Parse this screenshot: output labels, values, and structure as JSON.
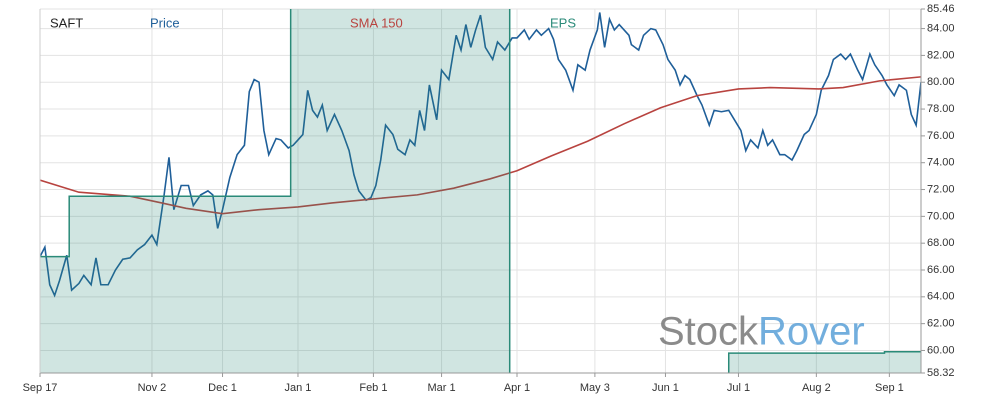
{
  "chart_data": {
    "type": "line",
    "title": "SAFT",
    "xlim": [
      0,
      362
    ],
    "xticks": [
      {
        "value": 0,
        "label": "Sep 17"
      },
      {
        "value": 46,
        "label": "Nov 2"
      },
      {
        "value": 75,
        "label": "Dec 1"
      },
      {
        "value": 106,
        "label": "Jan 1"
      },
      {
        "value": 137,
        "label": "Feb 1"
      },
      {
        "value": 165,
        "label": "Mar 1"
      },
      {
        "value": 196,
        "label": "Apr 1"
      },
      {
        "value": 228,
        "label": "May 3"
      },
      {
        "value": 257,
        "label": "Jun 1"
      },
      {
        "value": 287,
        "label": "Jul 1"
      },
      {
        "value": 319,
        "label": "Aug 2"
      },
      {
        "value": 349,
        "label": "Sep 1"
      }
    ],
    "ylim": [
      58.32,
      85.46
    ],
    "yticks": [
      58.32,
      {
        "value": 60,
        "label": "60.00"
      },
      {
        "value": 62,
        "label": "62.00"
      },
      {
        "value": 64,
        "label": "64.00"
      },
      {
        "value": 66,
        "label": "66.00"
      },
      {
        "value": 68,
        "label": "68.00"
      },
      {
        "value": 70,
        "label": "70.00"
      },
      {
        "value": 72,
        "label": "72.00"
      },
      {
        "value": 74,
        "label": "74.00"
      },
      {
        "value": 76,
        "label": "76.00"
      },
      {
        "value": 78,
        "label": "78.00"
      },
      {
        "value": 80,
        "label": "80.00"
      },
      {
        "value": 82,
        "label": "82.00"
      },
      {
        "value": 84,
        "label": "84.00"
      },
      85.46
    ],
    "grid": true,
    "watermark": [
      "Stock",
      "Rover"
    ],
    "series": [
      {
        "name": "Price",
        "color": "#1f5f99",
        "x": [
          0,
          2,
          4,
          6,
          8,
          11,
          13,
          16,
          18,
          21,
          23,
          25,
          28,
          31,
          34,
          37,
          40,
          43,
          46,
          48,
          51,
          53,
          55,
          58,
          61,
          63,
          66,
          69,
          71,
          73,
          75,
          78,
          81,
          84,
          86,
          88,
          90,
          92,
          94,
          97,
          99,
          102,
          104,
          106,
          108,
          110,
          112,
          114,
          116,
          118,
          121,
          124,
          127,
          129,
          131,
          134,
          136,
          138,
          140,
          142,
          145,
          147,
          150,
          152,
          154,
          156,
          158,
          160,
          163,
          165,
          168,
          171,
          173,
          175,
          177,
          179,
          181,
          183,
          186,
          188,
          191,
          194,
          196,
          199,
          201,
          204,
          206,
          209,
          211,
          213,
          216,
          219,
          221,
          224,
          226,
          229,
          230,
          232,
          234,
          236,
          238,
          242,
          243,
          246,
          248,
          251,
          253,
          256,
          258,
          261,
          263,
          265,
          267,
          270,
          272,
          275,
          277,
          280,
          283,
          285,
          288,
          290,
          292,
          295,
          297,
          299,
          301,
          304,
          306,
          309,
          311,
          314,
          316,
          319,
          321,
          324,
          326,
          329,
          331,
          333,
          336,
          338,
          341,
          343,
          346,
          348,
          351,
          353,
          356,
          358,
          360,
          362
        ],
        "values": [
          67.0,
          67.7,
          64.9,
          64.1,
          65.2,
          67.1,
          64.5,
          65.0,
          65.6,
          64.9,
          66.9,
          64.9,
          64.9,
          66.0,
          66.8,
          66.9,
          67.5,
          67.9,
          68.6,
          67.9,
          71.6,
          74.4,
          70.5,
          72.3,
          72.3,
          70.8,
          71.6,
          71.9,
          71.6,
          69.1,
          70.5,
          72.9,
          74.6,
          75.3,
          79.3,
          80.2,
          80.0,
          76.4,
          74.6,
          75.8,
          75.7,
          75.1,
          75.3,
          75.7,
          76.1,
          79.4,
          77.9,
          77.4,
          78.3,
          76.4,
          77.6,
          76.4,
          74.9,
          73.1,
          71.9,
          71.2,
          71.4,
          72.3,
          74.2,
          76.8,
          76.1,
          75.0,
          74.6,
          75.7,
          75.3,
          77.9,
          76.4,
          79.8,
          77.2,
          80.9,
          80.2,
          83.5,
          82.4,
          84.3,
          82.6,
          83.9,
          85.0,
          82.6,
          81.7,
          83.0,
          82.4,
          83.3,
          83.3,
          83.9,
          83.2,
          83.9,
          83.5,
          84.0,
          83.2,
          81.7,
          80.9,
          79.4,
          81.3,
          80.9,
          82.4,
          83.9,
          85.2,
          82.6,
          84.7,
          83.9,
          84.3,
          83.5,
          82.8,
          82.4,
          83.5,
          84.0,
          83.9,
          82.8,
          81.7,
          80.9,
          79.8,
          80.5,
          80.2,
          79.0,
          78.3,
          76.8,
          77.9,
          77.8,
          77.9,
          77.3,
          76.4,
          74.9,
          75.7,
          75.1,
          76.4,
          75.3,
          75.7,
          74.6,
          74.6,
          74.2,
          74.9,
          76.1,
          76.4,
          77.6,
          79.4,
          80.5,
          81.7,
          82.1,
          81.7,
          82.1,
          80.9,
          80.2,
          82.1,
          81.3,
          80.5,
          79.8,
          79.0,
          79.8,
          79.4,
          77.6,
          76.8,
          80.0
        ]
      },
      {
        "name": "SMA 150",
        "color": "#b8433f",
        "x": [
          0,
          16,
          37,
          50,
          60,
          75,
          90,
          106,
          120,
          137,
          155,
          170,
          185,
          196,
          210,
          225,
          240,
          255,
          270,
          287,
          300,
          320,
          330,
          345,
          362
        ],
        "values": [
          72.7,
          71.8,
          71.5,
          71.0,
          70.6,
          70.2,
          70.5,
          70.7,
          71.0,
          71.3,
          71.6,
          72.1,
          72.8,
          73.4,
          74.5,
          75.6,
          76.9,
          78.1,
          79.0,
          79.5,
          79.6,
          79.5,
          79.6,
          80.1,
          80.4
        ]
      },
      {
        "name": "EPS",
        "color": "#2a8a78",
        "step": true,
        "x": [
          0,
          12,
          103,
          193,
          283,
          347,
          362
        ],
        "values": [
          67.0,
          71.5,
          86.0,
          58.0,
          59.8,
          59.9,
          59.9
        ]
      }
    ]
  }
}
